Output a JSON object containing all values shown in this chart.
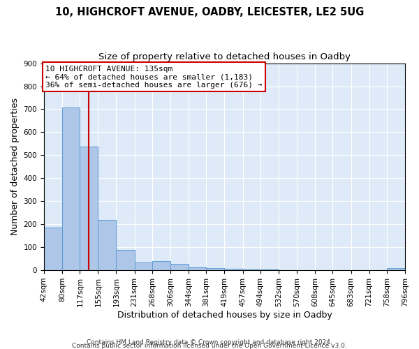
{
  "title": "10, HIGHCROFT AVENUE, OADBY, LEICESTER, LE2 5UG",
  "subtitle": "Size of property relative to detached houses in Oadby",
  "xlabel": "Distribution of detached houses by size in Oadby",
  "ylabel": "Number of detached properties",
  "footnote1": "Contains HM Land Registry data © Crown copyright and database right 2024.",
  "footnote2": "Contains public sector information licensed under the Open Government Licence v3.0.",
  "bar_edges": [
    42,
    80,
    117,
    155,
    193,
    231,
    268,
    306,
    344,
    381,
    419,
    457,
    494,
    532,
    570,
    608,
    645,
    683,
    721,
    758,
    796
  ],
  "bar_heights": [
    185,
    707,
    537,
    220,
    88,
    35,
    40,
    27,
    12,
    10,
    6,
    3,
    2,
    0,
    0,
    0,
    0,
    0,
    0,
    8
  ],
  "bar_color": "#aec6e8",
  "bar_edgecolor": "#5b9bd5",
  "property_line_x": 135,
  "property_line_color": "#cc0000",
  "annotation_line1": "10 HIGHCROFT AVENUE: 135sqm",
  "annotation_line2": "← 64% of detached houses are smaller (1,183)",
  "annotation_line3": "36% of semi-detached houses are larger (676) →",
  "annotation_box_edgecolor": "#cc0000",
  "annotation_box_facecolor": "#ffffff",
  "ylim": [
    0,
    900
  ],
  "yticks": [
    0,
    100,
    200,
    300,
    400,
    500,
    600,
    700,
    800,
    900
  ],
  "tick_labels": [
    "42sqm",
    "80sqm",
    "117sqm",
    "155sqm",
    "193sqm",
    "231sqm",
    "268sqm",
    "306sqm",
    "344sqm",
    "381sqm",
    "419sqm",
    "457sqm",
    "494sqm",
    "532sqm",
    "570sqm",
    "608sqm",
    "645sqm",
    "683sqm",
    "721sqm",
    "758sqm",
    "796sqm"
  ],
  "background_color": "#deeaf7",
  "title_fontsize": 10.5,
  "subtitle_fontsize": 9.5,
  "axis_label_fontsize": 9,
  "tick_fontsize": 7.5,
  "footnote_fontsize": 6.5
}
